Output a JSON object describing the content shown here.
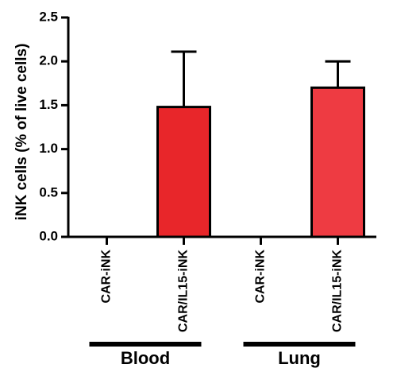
{
  "chart_data": {
    "type": "bar",
    "ylabel": "iNK cells (% of live cells)",
    "ylim": [
      0,
      2.5
    ],
    "yticks": [
      "0.0",
      "0.5",
      "1.0",
      "1.5",
      "2.0",
      "2.5"
    ],
    "categories": [
      "CAR-iNK",
      "CAR/IL15-iNK",
      "CAR-iNK",
      "CAR/IL15-iNK"
    ],
    "values": [
      0,
      1.48,
      0,
      1.7
    ],
    "errors": [
      0,
      0.63,
      0,
      0.3
    ],
    "colors": [
      "#e8262a",
      "#e8262a",
      "#ee3b42",
      "#ee3b42"
    ],
    "groups": [
      {
        "label": "Blood",
        "categories": [
          0,
          1
        ]
      },
      {
        "label": "Lung",
        "categories": [
          2,
          3
        ]
      }
    ]
  }
}
